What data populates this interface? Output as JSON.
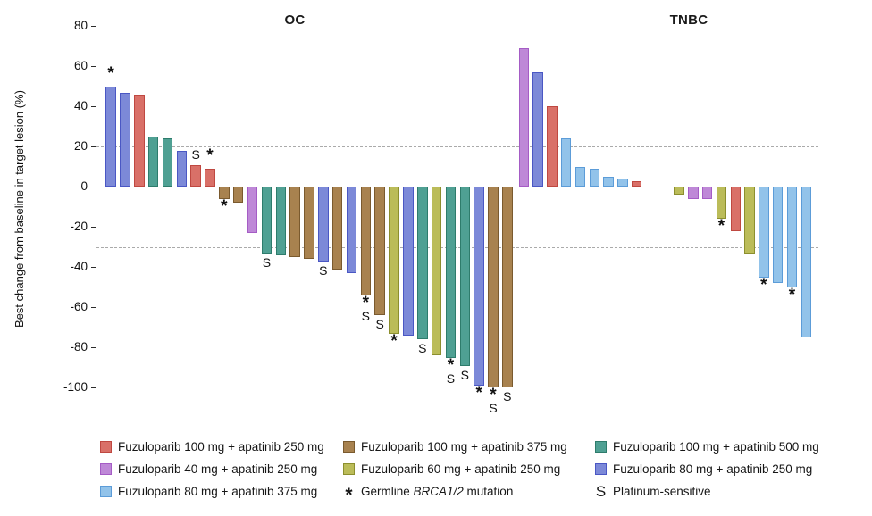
{
  "chart_data": {
    "type": "bar",
    "subtype": "waterfall",
    "ylabel": "Best change from baseline in target lesion (%)",
    "ylim": [
      -100,
      80
    ],
    "y_ticks": [
      80,
      60,
      40,
      20,
      0,
      -20,
      -40,
      -60,
      -80,
      -100
    ],
    "reference_lines": [
      20,
      -30
    ],
    "grid": "off",
    "legend_position": "bottom",
    "groups": {
      "fz100_ap250": {
        "label": "Fuzuloparib 100 mg + apatinib 250 mg",
        "fill": "#D97068",
        "stroke": "#BF4841"
      },
      "fz100_ap375": {
        "label": "Fuzuloparib 100 mg + apatinib 375 mg",
        "fill": "#A8824F",
        "stroke": "#7A5A2E"
      },
      "fz100_ap500": {
        "label": "Fuzuloparib 100 mg + apatinib 500 mg",
        "fill": "#4FA093",
        "stroke": "#2E7C6C"
      },
      "fz40_ap250": {
        "label": "Fuzuloparib 40 mg + apatinib 250 mg",
        "fill": "#BE88D7",
        "stroke": "#A55CC5"
      },
      "fz60_ap250": {
        "label": "Fuzuloparib 60 mg + apatinib 250 mg",
        "fill": "#BBBC59",
        "stroke": "#8C8F2E"
      },
      "fz80_ap250": {
        "label": "Fuzuloparib 80 mg + apatinib 250 mg",
        "fill": "#7C89D8",
        "stroke": "#4A57C4"
      },
      "fz80_ap375": {
        "label": "Fuzuloparib 80 mg + apatinib 375 mg",
        "fill": "#92C3EA",
        "stroke": "#5C9CD8"
      }
    },
    "legend_order": [
      "fz100_ap250",
      "fz100_ap375",
      "fz100_ap500",
      "fz40_ap250",
      "fz60_ap250",
      "fz80_ap250",
      "fz80_ap375"
    ],
    "marker_legend": [
      {
        "symbol": "*",
        "parts": [
          {
            "t": "Germline "
          },
          {
            "t": "BRCA1/2",
            "i": true
          },
          {
            "t": " mutation"
          }
        ]
      },
      {
        "symbol": "S",
        "parts": [
          {
            "t": "Platinum-sensitive"
          }
        ]
      }
    ],
    "panels": [
      {
        "title": "OC",
        "bars": [
          {
            "value": 50,
            "group": "fz80_ap250",
            "marker": "*"
          },
          {
            "value": 47,
            "group": "fz80_ap250",
            "marker": ""
          },
          {
            "value": 46,
            "group": "fz100_ap250",
            "marker": ""
          },
          {
            "value": 25,
            "group": "fz100_ap500",
            "marker": ""
          },
          {
            "value": 24,
            "group": "fz100_ap500",
            "marker": ""
          },
          {
            "value": 18,
            "group": "fz80_ap250",
            "marker": ""
          },
          {
            "value": 11,
            "group": "fz100_ap250",
            "marker": "S"
          },
          {
            "value": 9,
            "group": "fz100_ap250",
            "marker": "*"
          },
          {
            "value": -6,
            "group": "fz100_ap375",
            "marker": "*"
          },
          {
            "value": -8,
            "group": "fz100_ap375",
            "marker": ""
          },
          {
            "value": -23,
            "group": "fz40_ap250",
            "marker": ""
          },
          {
            "value": -33,
            "group": "fz100_ap500",
            "marker": "S"
          },
          {
            "value": -34,
            "group": "fz100_ap500",
            "marker": ""
          },
          {
            "value": -35,
            "group": "fz100_ap375",
            "marker": ""
          },
          {
            "value": -36,
            "group": "fz100_ap375",
            "marker": ""
          },
          {
            "value": -37,
            "group": "fz80_ap250",
            "marker": "S"
          },
          {
            "value": -41,
            "group": "fz100_ap375",
            "marker": ""
          },
          {
            "value": -43,
            "group": "fz80_ap250",
            "marker": ""
          },
          {
            "value": -54,
            "group": "fz100_ap375",
            "marker": "*S"
          },
          {
            "value": -64,
            "group": "fz100_ap375",
            "marker": "S"
          },
          {
            "value": -73,
            "group": "fz60_ap250",
            "marker": "*"
          },
          {
            "value": -74,
            "group": "fz80_ap250",
            "marker": ""
          },
          {
            "value": -76,
            "group": "fz100_ap500",
            "marker": "S"
          },
          {
            "value": -84,
            "group": "fz60_ap250",
            "marker": ""
          },
          {
            "value": -85,
            "group": "fz100_ap500",
            "marker": "*S"
          },
          {
            "value": -89,
            "group": "fz100_ap500",
            "marker": "S"
          },
          {
            "value": -99,
            "group": "fz80_ap250",
            "marker": "*"
          },
          {
            "value": -100,
            "group": "fz100_ap375",
            "marker": "*S"
          },
          {
            "value": -100,
            "group": "fz100_ap375",
            "marker": "S"
          }
        ]
      },
      {
        "title": "TNBC",
        "bars": [
          {
            "value": 69,
            "group": "fz40_ap250",
            "marker": ""
          },
          {
            "value": 57,
            "group": "fz80_ap250",
            "marker": ""
          },
          {
            "value": 40,
            "group": "fz100_ap250",
            "marker": ""
          },
          {
            "value": 24,
            "group": "fz80_ap375",
            "marker": ""
          },
          {
            "value": 10,
            "group": "fz80_ap375",
            "marker": ""
          },
          {
            "value": 9,
            "group": "fz80_ap375",
            "marker": ""
          },
          {
            "value": 5,
            "group": "fz80_ap375",
            "marker": ""
          },
          {
            "value": 4,
            "group": "fz80_ap375",
            "marker": ""
          },
          {
            "value": 3,
            "group": "fz100_ap250",
            "marker": ""
          },
          {
            "value": -4,
            "group": "fz60_ap250",
            "marker": "",
            "slot": 11
          },
          {
            "value": -6,
            "group": "fz40_ap250",
            "marker": "",
            "slot": 12
          },
          {
            "value": -6,
            "group": "fz40_ap250",
            "marker": "",
            "slot": 13
          },
          {
            "value": -16,
            "group": "fz60_ap250",
            "marker": "*",
            "slot": 14
          },
          {
            "value": -22,
            "group": "fz100_ap250",
            "marker": "",
            "slot": 15
          },
          {
            "value": -33,
            "group": "fz60_ap250",
            "marker": "",
            "slot": 16
          },
          {
            "value": -45,
            "group": "fz80_ap375",
            "marker": "*",
            "slot": 17
          },
          {
            "value": -48,
            "group": "fz80_ap375",
            "marker": "",
            "slot": 18
          },
          {
            "value": -50,
            "group": "fz80_ap375",
            "marker": "*",
            "slot": 19
          },
          {
            "value": -75,
            "group": "fz80_ap375",
            "marker": "",
            "slot": 20
          }
        ]
      }
    ]
  }
}
